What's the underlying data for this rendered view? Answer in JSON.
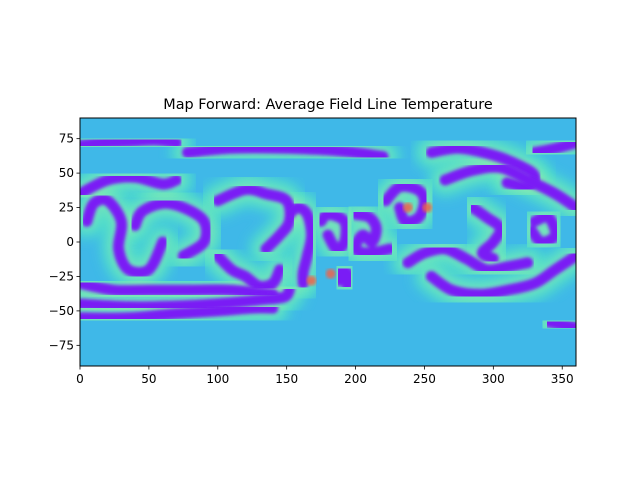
{
  "chart_data": {
    "type": "heatmap",
    "title": "Map Forward: Average Field Line Temperature",
    "xlabel": "",
    "ylabel": "",
    "xlim": [
      0,
      360
    ],
    "ylim": [
      -90,
      90
    ],
    "x_ticks": [
      0,
      50,
      100,
      150,
      200,
      250,
      300,
      350
    ],
    "y_ticks": [
      -75,
      -50,
      -25,
      0,
      25,
      50,
      75
    ],
    "y_tick_labels": [
      "−75",
      "−50",
      "−25",
      "0",
      "25",
      "50",
      "75"
    ],
    "colormap": "rainbow",
    "grid": false,
    "colors": {
      "background": "#3fb8e8",
      "band_color": "#7a1cf5",
      "field": "#4de3c8",
      "highlight": "#c8f09a",
      "hotspot": "#f0644a"
    },
    "bands": [
      {
        "name": "band-north-arc-left",
        "points": [
          [
            0,
            70
          ],
          [
            15,
            72
          ],
          [
            35,
            73
          ],
          [
            55,
            74
          ],
          [
            70,
            72
          ]
        ]
      },
      {
        "name": "band-north-arc-mid",
        "points": [
          [
            78,
            65
          ],
          [
            110,
            68
          ],
          [
            150,
            68
          ],
          [
            190,
            66
          ],
          [
            220,
            62
          ]
        ]
      },
      {
        "name": "band-north-left-lower",
        "points": [
          [
            0,
            35
          ],
          [
            20,
            45
          ],
          [
            40,
            47
          ],
          [
            60,
            42
          ],
          [
            70,
            45
          ]
        ]
      },
      {
        "name": "band-north-right",
        "points": [
          [
            255,
            65
          ],
          [
            275,
            68
          ],
          [
            300,
            63
          ],
          [
            320,
            55
          ],
          [
            330,
            48
          ],
          [
            325,
            40
          ],
          [
            310,
            43
          ]
        ]
      },
      {
        "name": "band-north-far-right",
        "points": [
          [
            330,
            65
          ],
          [
            345,
            68
          ],
          [
            360,
            72
          ]
        ]
      },
      {
        "name": "band-east-upper",
        "points": [
          [
            265,
            45
          ],
          [
            285,
            52
          ],
          [
            305,
            54
          ],
          [
            325,
            45
          ],
          [
            345,
            35
          ],
          [
            360,
            25
          ]
        ]
      },
      {
        "name": "band-left-loop",
        "points": [
          [
            5,
            15
          ],
          [
            10,
            28
          ],
          [
            20,
            30
          ],
          [
            30,
            15
          ],
          [
            28,
            -5
          ],
          [
            35,
            -20
          ],
          [
            50,
            -20
          ],
          [
            60,
            0
          ]
        ]
      },
      {
        "name": "band-left-hook",
        "points": [
          [
            40,
            12
          ],
          [
            45,
            22
          ],
          [
            60,
            28
          ],
          [
            75,
            25
          ],
          [
            90,
            15
          ],
          [
            90,
            0
          ],
          [
            75,
            -10
          ]
        ]
      },
      {
        "name": "band-center-s",
        "points": [
          [
            100,
            30
          ],
          [
            120,
            38
          ],
          [
            135,
            35
          ],
          [
            150,
            30
          ],
          [
            152,
            15
          ],
          [
            145,
            5
          ],
          [
            135,
            -5
          ]
        ]
      },
      {
        "name": "band-center-lower",
        "points": [
          [
            100,
            -10
          ],
          [
            110,
            -20
          ],
          [
            120,
            -25
          ],
          [
            130,
            -32
          ],
          [
            140,
            -30
          ],
          [
            145,
            -20
          ]
        ]
      },
      {
        "name": "band-column",
        "points": [
          [
            152,
            20
          ],
          [
            158,
            25
          ],
          [
            165,
            20
          ],
          [
            168,
            5
          ],
          [
            165,
            -10
          ],
          [
            162,
            -22
          ],
          [
            162,
            -30
          ]
        ]
      },
      {
        "name": "band-mid-loop",
        "points": [
          [
            175,
            15
          ],
          [
            180,
            20
          ],
          [
            192,
            15
          ],
          [
            192,
            0
          ],
          [
            186,
            -5
          ],
          [
            180,
            5
          ]
        ]
      },
      {
        "name": "band-mid-loop-2",
        "points": [
          [
            200,
            20
          ],
          [
            210,
            18
          ],
          [
            215,
            10
          ],
          [
            212,
            0
          ],
          [
            205,
            5
          ],
          [
            200,
            -5
          ],
          [
            210,
            -8
          ],
          [
            225,
            -5
          ]
        ]
      },
      {
        "name": "band-right-loop",
        "points": [
          [
            222,
            30
          ],
          [
            232,
            40
          ],
          [
            245,
            38
          ],
          [
            250,
            30
          ],
          [
            246,
            18
          ],
          [
            236,
            15
          ],
          [
            232,
            25
          ]
        ]
      },
      {
        "name": "band-right-arc",
        "points": [
          [
            238,
            -15
          ],
          [
            250,
            -8
          ],
          [
            265,
            -5
          ],
          [
            280,
            -12
          ],
          [
            295,
            -20
          ],
          [
            310,
            -18
          ],
          [
            325,
            -15
          ]
        ]
      },
      {
        "name": "band-right-inner",
        "points": [
          [
            285,
            25
          ],
          [
            295,
            18
          ],
          [
            305,
            10
          ],
          [
            300,
            0
          ],
          [
            292,
            -8
          ],
          [
            300,
            -12
          ]
        ]
      },
      {
        "name": "band-right-small",
        "points": [
          [
            330,
            15
          ],
          [
            340,
            18
          ],
          [
            345,
            5
          ],
          [
            335,
            0
          ],
          [
            328,
            8
          ]
        ]
      },
      {
        "name": "band-mid-blob",
        "points": [
          [
            188,
            -28
          ],
          [
            190,
            -20
          ],
          [
            196,
            -25
          ],
          [
            194,
            -32
          ]
        ]
      },
      {
        "name": "band-south-upper",
        "points": [
          [
            0,
            -30
          ],
          [
            25,
            -35
          ],
          [
            50,
            -35
          ],
          [
            80,
            -35
          ],
          [
            110,
            -35
          ],
          [
            140,
            -38
          ]
        ]
      },
      {
        "name": "band-south-main",
        "points": [
          [
            0,
            -45
          ],
          [
            40,
            -47
          ],
          [
            80,
            -46
          ],
          [
            110,
            -44
          ],
          [
            130,
            -42
          ],
          [
            148,
            -40
          ],
          [
            152,
            -35
          ]
        ]
      },
      {
        "name": "band-south-lower",
        "points": [
          [
            0,
            -55
          ],
          [
            35,
            -55
          ],
          [
            70,
            -52
          ],
          [
            100,
            -50
          ],
          [
            125,
            -48
          ],
          [
            140,
            -48
          ]
        ]
      },
      {
        "name": "band-south-right",
        "points": [
          [
            255,
            -25
          ],
          [
            270,
            -35
          ],
          [
            290,
            -38
          ],
          [
            310,
            -35
          ],
          [
            330,
            -30
          ],
          [
            345,
            -20
          ],
          [
            360,
            -10
          ]
        ]
      },
      {
        "name": "band-south-far-right",
        "points": [
          [
            340,
            -58
          ],
          [
            350,
            -60
          ],
          [
            360,
            -62
          ]
        ]
      }
    ],
    "hotspots": [
      {
        "name": "hotspot-1",
        "x": 238,
        "y": 25
      },
      {
        "name": "hotspot-2",
        "x": 252,
        "y": 25
      },
      {
        "name": "hotspot-3",
        "x": 182,
        "y": -23
      },
      {
        "name": "hotspot-4",
        "x": 168,
        "y": -28
      }
    ]
  }
}
